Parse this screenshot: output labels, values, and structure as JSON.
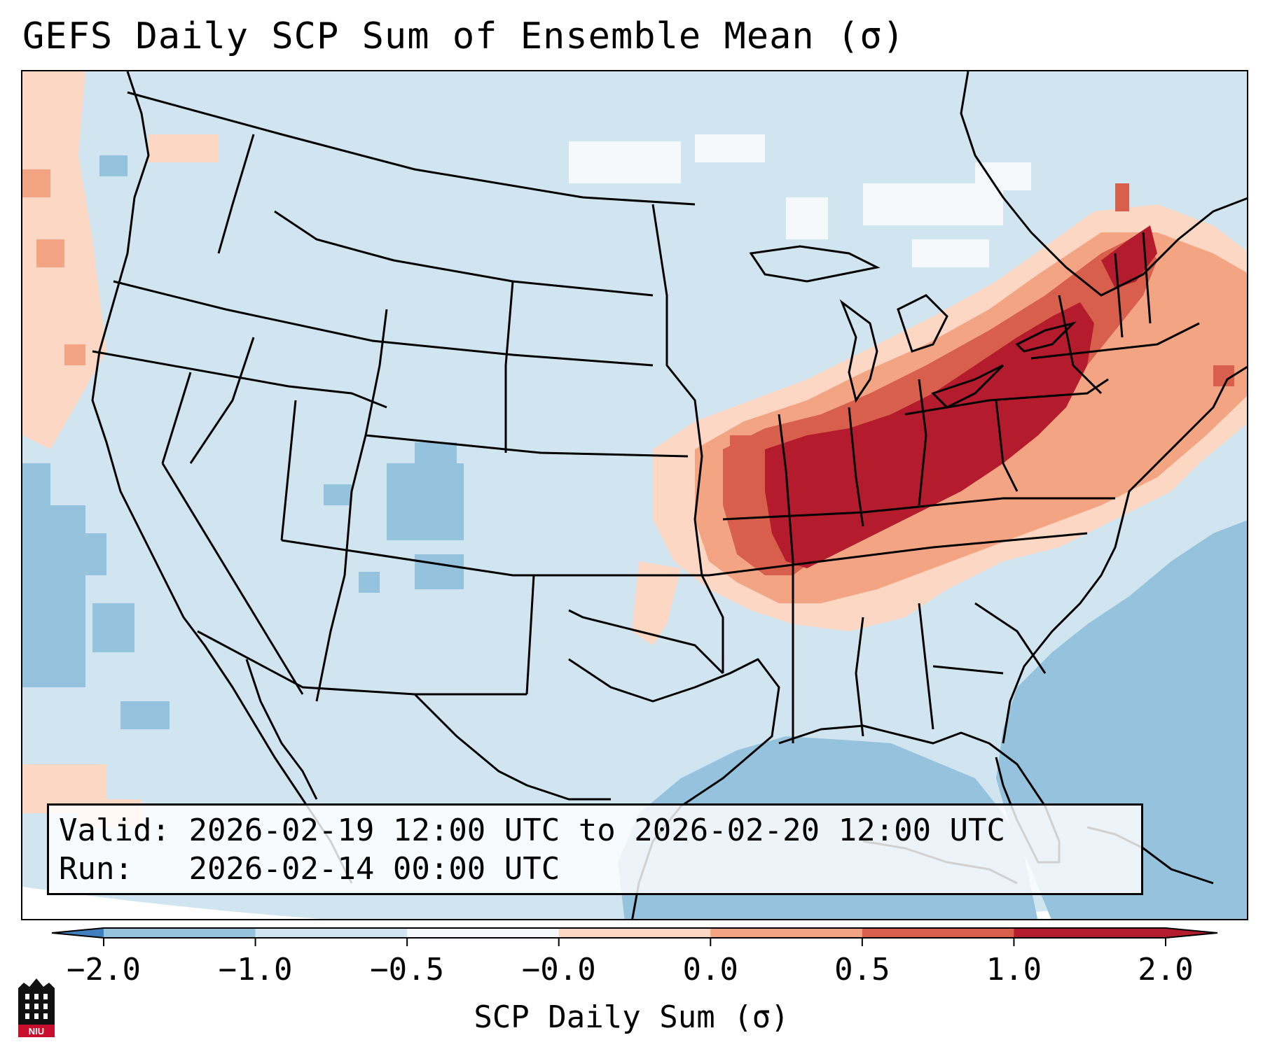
{
  "figure": {
    "title": "GEFS Daily SCP Sum of Ensemble Mean (σ)",
    "valid_label": "Valid:",
    "valid_value": "2026-02-19 12:00 UTC to 2026-02-20 12:00 UTC",
    "run_label": "Run:",
    "run_value": "2026-02-14 00:00 UTC"
  },
  "colorbar": {
    "title": "SCP Daily Sum (σ)",
    "ticks": [
      "−2.0",
      "−1.0",
      "−0.5",
      "−0.0",
      "0.0",
      "0.5",
      "1.0",
      "2.0"
    ],
    "colors": [
      "#3f7fbd",
      "#95c3de",
      "#d1e5f0",
      "#f5f9fc",
      "#fbd7c4",
      "#f3a583",
      "#d75f4c",
      "#b41b2c"
    ],
    "extend": "both"
  },
  "map": {
    "projection": "lambert-conformal",
    "region": "CONUS",
    "colors": {
      "ocean": "#95c3de",
      "land_background": "#d1e5f0",
      "near_zero": "#f5f9fc",
      "light_positive": "#fbd7c4",
      "mid_positive": "#f3a583",
      "strong_positive": "#d75f4c",
      "max_positive": "#b41b2c",
      "borders": "#000000"
    },
    "features": [
      {
        "region": "Ohio Valley / Midwest",
        "value_range": "1.0 to 2.0"
      },
      {
        "region": "Northeast / Great Lakes",
        "value_range": "0.5 to 2.0"
      },
      {
        "region": "Southern Plains edge",
        "value_range": "0.0 to 0.5"
      },
      {
        "region": "Gulf of Mexico / Atlantic",
        "value_range": "-1.0 to -0.5"
      },
      {
        "region": "Pacific coast",
        "value_range": "0.0 to 0.5"
      }
    ]
  },
  "logo": {
    "text": "NIU"
  }
}
